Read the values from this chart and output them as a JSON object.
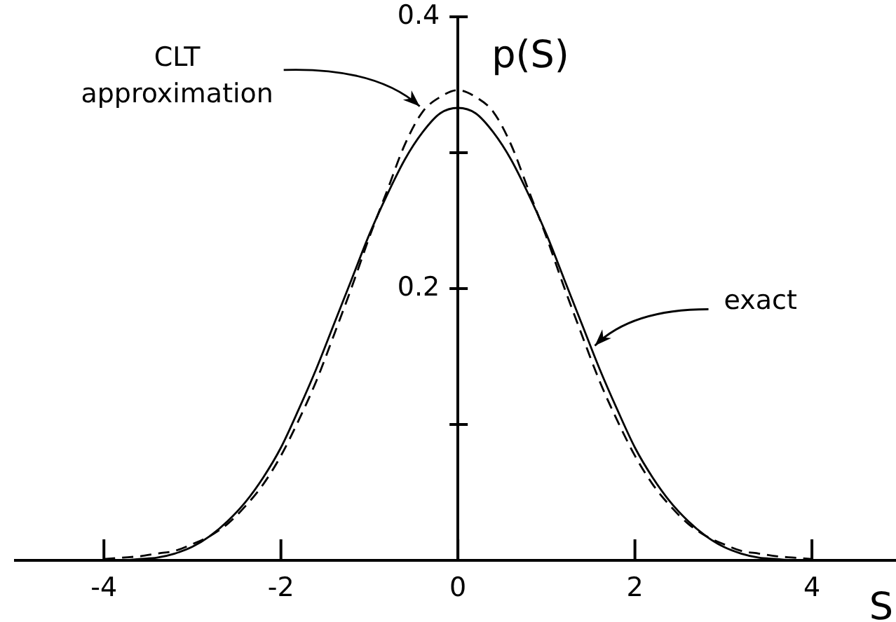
{
  "chart_data": {
    "type": "line",
    "xlabel": "S",
    "ylabel": "p(S)",
    "x": [
      -4,
      -3.8,
      -3.6,
      -3.4,
      -3.2,
      -3,
      -2.8,
      -2.6,
      -2.4,
      -2.2,
      -2,
      -1.8,
      -1.6,
      -1.4,
      -1.2,
      -1,
      -0.8,
      -0.6,
      -0.4,
      -0.2,
      0,
      0.2,
      0.4,
      0.6,
      0.8,
      1,
      1.2,
      1.4,
      1.6,
      1.8,
      2,
      2.2,
      2.4,
      2.6,
      2.8,
      3,
      3.2,
      3.4,
      3.6,
      3.8,
      4
    ],
    "series": [
      {
        "color": "#000000",
        "line_style": "solid",
        "values": [
          0,
          0,
          0.001,
          0.002,
          0.005,
          0.01,
          0.018,
          0.029,
          0.043,
          0.061,
          0.083,
          0.111,
          0.141,
          0.174,
          0.207,
          0.24,
          0.269,
          0.295,
          0.315,
          0.329,
          0.333,
          0.329,
          0.315,
          0.295,
          0.269,
          0.24,
          0.207,
          0.174,
          0.141,
          0.111,
          0.083,
          0.061,
          0.043,
          0.029,
          0.018,
          0.01,
          0.005,
          0.002,
          0.001,
          0,
          0
        ]
      },
      {
        "color": "#000000",
        "line_style": "dashed",
        "values": [
          0.001,
          0.002,
          0.003,
          0.005,
          0.007,
          0.012,
          0.018,
          0.027,
          0.04,
          0.056,
          0.077,
          0.103,
          0.132,
          0.166,
          0.201,
          0.238,
          0.272,
          0.306,
          0.33,
          0.341,
          0.346,
          0.341,
          0.33,
          0.306,
          0.272,
          0.238,
          0.201,
          0.166,
          0.132,
          0.103,
          0.077,
          0.056,
          0.04,
          0.027,
          0.018,
          0.012,
          0.007,
          0.005,
          0.003,
          0.002,
          0.001
        ]
      }
    ],
    "annotations": [
      {
        "text": "CLT approximation",
        "x": -0.4,
        "y": 0.33
      },
      {
        "text": "exact",
        "x": 1.5,
        "y": 0.158
      }
    ],
    "xlim": [
      -5,
      4.95
    ],
    "ylim": [
      0,
      0.4
    ],
    "xticks": [
      -4,
      -2,
      0,
      2,
      4
    ],
    "yticks": [
      {
        "value": 0.1,
        "label": null
      },
      0.2,
      {
        "value": 0.3,
        "label": null
      },
      0.4
    ],
    "grid": false,
    "legend": false,
    "marker": "none"
  }
}
